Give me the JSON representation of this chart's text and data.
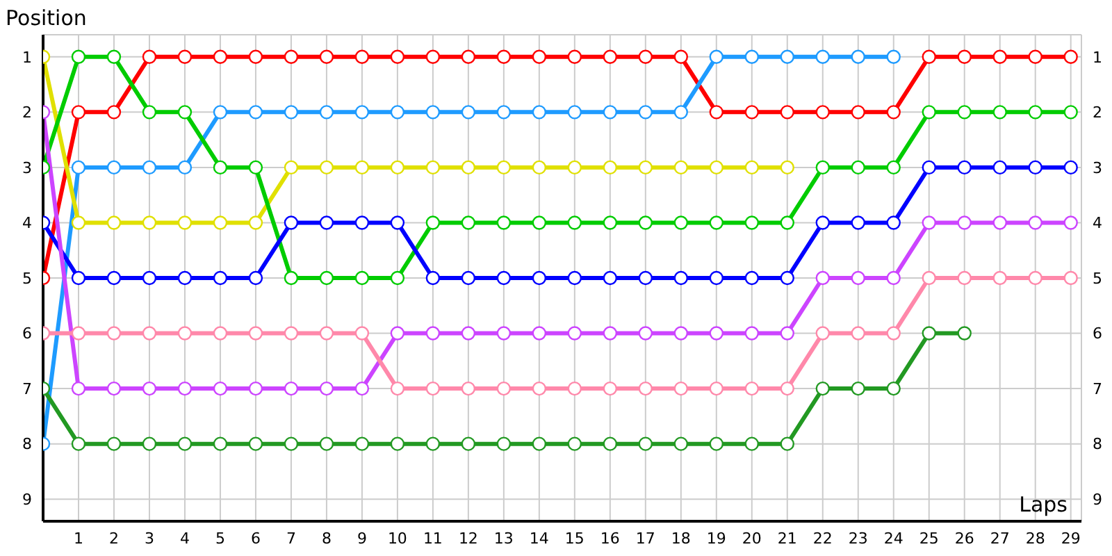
{
  "chart_data": {
    "type": "line",
    "xlabel": "Laps",
    "ylabel": "Position",
    "x": [
      0,
      1,
      2,
      3,
      4,
      5,
      6,
      7,
      8,
      9,
      10,
      11,
      12,
      13,
      14,
      15,
      16,
      17,
      18,
      19,
      20,
      21,
      22,
      23,
      24,
      25,
      26,
      27,
      28,
      29
    ],
    "xlim": [
      0,
      29.3
    ],
    "xticks": [
      1,
      2,
      3,
      4,
      5,
      6,
      7,
      8,
      9,
      10,
      11,
      12,
      13,
      14,
      15,
      16,
      17,
      18,
      19,
      20,
      21,
      22,
      23,
      24,
      25,
      26,
      27,
      28,
      29
    ],
    "ylim": [
      9.4,
      0.6
    ],
    "yticks": [
      1,
      2,
      3,
      4,
      5,
      6,
      7,
      8,
      9
    ],
    "y2lim": [
      9.4,
      0.6
    ],
    "y2ticks": [
      1,
      2,
      3,
      4,
      5,
      6,
      7,
      8,
      9
    ],
    "grid": true,
    "marker": "circle",
    "line_style": "solid",
    "series": [
      {
        "color": "#ff0000",
        "values": [
          5,
          2,
          2,
          1,
          1,
          1,
          1,
          1,
          1,
          1,
          1,
          1,
          1,
          1,
          1,
          1,
          1,
          1,
          1,
          2,
          2,
          2,
          2,
          2,
          2,
          1,
          1,
          1,
          1,
          1
        ]
      },
      {
        "color": "#1e9bff",
        "values": [
          8,
          3,
          3,
          3,
          3,
          2,
          2,
          2,
          2,
          2,
          2,
          2,
          2,
          2,
          2,
          2,
          2,
          2,
          2,
          1,
          1,
          1,
          1,
          1,
          1,
          null,
          null,
          null,
          null,
          null
        ]
      },
      {
        "color": "#e0e000",
        "values": [
          1,
          4,
          4,
          4,
          4,
          4,
          4,
          3,
          3,
          3,
          3,
          3,
          3,
          3,
          3,
          3,
          3,
          3,
          3,
          3,
          3,
          3,
          null,
          null,
          null,
          null,
          null,
          null,
          null,
          null
        ]
      },
      {
        "color": "#00cc00",
        "values": [
          3,
          1,
          1,
          2,
          2,
          3,
          3,
          5,
          5,
          5,
          5,
          4,
          4,
          4,
          4,
          4,
          4,
          4,
          4,
          4,
          4,
          4,
          3,
          3,
          3,
          2,
          2,
          2,
          2,
          2
        ]
      },
      {
        "color": "#0000ff",
        "values": [
          4,
          5,
          5,
          5,
          5,
          5,
          5,
          4,
          4,
          4,
          4,
          5,
          5,
          5,
          5,
          5,
          5,
          5,
          5,
          5,
          5,
          5,
          4,
          4,
          4,
          3,
          3,
          3,
          3,
          3
        ]
      },
      {
        "color": "#cc44ff",
        "values": [
          2,
          7,
          7,
          7,
          7,
          7,
          7,
          7,
          7,
          7,
          6,
          6,
          6,
          6,
          6,
          6,
          6,
          6,
          6,
          6,
          6,
          6,
          5,
          5,
          5,
          4,
          4,
          4,
          4,
          4
        ]
      },
      {
        "color": "#ff88aa",
        "values": [
          6,
          6,
          6,
          6,
          6,
          6,
          6,
          6,
          6,
          6,
          7,
          7,
          7,
          7,
          7,
          7,
          7,
          7,
          7,
          7,
          7,
          7,
          6,
          6,
          6,
          5,
          5,
          5,
          5,
          5
        ]
      },
      {
        "color": "#229922",
        "values": [
          7,
          8,
          8,
          8,
          8,
          8,
          8,
          8,
          8,
          8,
          8,
          8,
          8,
          8,
          8,
          8,
          8,
          8,
          8,
          8,
          8,
          8,
          7,
          7,
          7,
          6,
          6,
          null,
          null,
          null
        ]
      }
    ]
  }
}
